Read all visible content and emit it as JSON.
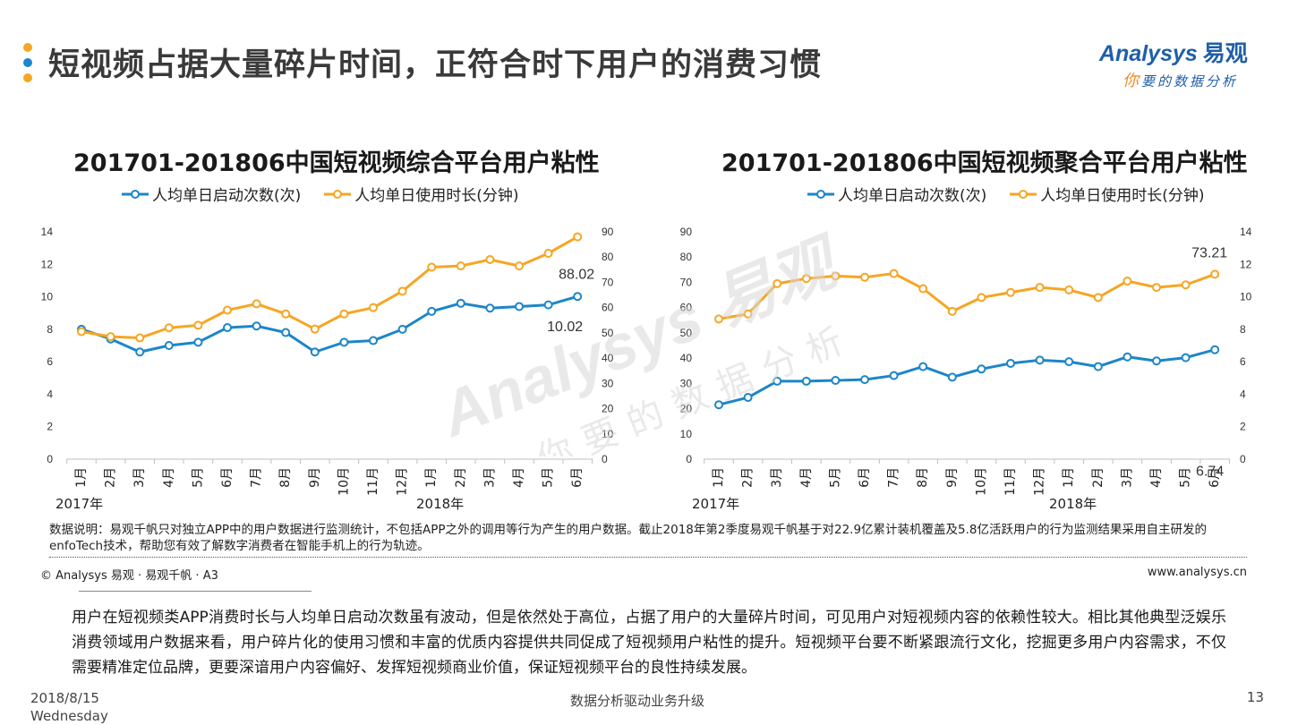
{
  "slide": {
    "title": "短视频占据大量碎片时间，正符合时下用户的消费习惯",
    "title_dot_colors": [
      "#f5a623",
      "#1c86c9",
      "#f5a623"
    ],
    "logo": {
      "brand_en": "Analysys",
      "brand_cn": "易观",
      "tagline_first": "你",
      "tagline_rest": "要的数据分析"
    },
    "watermark": {
      "brand": "Analysys 易观",
      "tagline": "你要的数据分析"
    },
    "note": "数据说明：易观千帆只对独立APP中的用户数据进行监测统计，不包括APP之外的调用等行为产生的用户数据。截止2018年第2季度易观千帆基于对22.9亿累计装机覆盖及5.8亿活跃用户的行为监测结果采用自主研发的enfoTech技术，帮助您有效了解数字消费者在智能手机上的行为轨迹。",
    "copyright": "© Analysys 易观 · 易观千帆 · A3",
    "website": "www.analysys.cn",
    "body_text": "用户在短视频类APP消费时长与人均单日启动次数虽有波动，但是依然处于高位，占据了用户的大量碎片时间，可见用户对短视频内容的依赖性较大。相比其他典型泛娱乐消费领域用户数据来看，用户碎片化的使用习惯和丰富的优质内容提供共同促成了短视频用户粘性的提升。短视频平台要不断紧跟流行文化，挖掘更多用户内容需求，不仅需要精准定位品牌，更要深谙用户内容偏好、发挥短视频商业价值，保证短视频平台的良性持续发展。",
    "footer": {
      "date": "2018/8/15",
      "weekday": "Wednesday",
      "slogan": "数据分析驱动业务升级",
      "page": "13"
    }
  },
  "chart_data": [
    {
      "type": "line",
      "title": "201701-201806中国短视频综合平台用户粘性",
      "categories": [
        "1月",
        "2月",
        "3月",
        "4月",
        "5月",
        "6月",
        "7月",
        "8月",
        "9月",
        "10月",
        "11月",
        "12月",
        "1月",
        "2月",
        "3月",
        "4月",
        "5月",
        "6月"
      ],
      "year_labels": [
        "2017年",
        "2018年"
      ],
      "legend_position": "top",
      "grid": false,
      "series": [
        {
          "name": "人均单日启动次数(次)",
          "axis": "left",
          "color": "#1c86c9",
          "values": [
            8.0,
            7.4,
            6.6,
            7.0,
            7.2,
            8.1,
            8.2,
            7.8,
            6.6,
            7.2,
            7.3,
            8.0,
            9.1,
            9.6,
            9.3,
            9.4,
            9.5,
            10.02
          ],
          "last_label": "10.02"
        },
        {
          "name": "人均单日使用时长(分钟)",
          "axis": "right",
          "color": "#f5a623",
          "values": [
            50.5,
            48.5,
            48.0,
            52.0,
            53.0,
            59.0,
            61.5,
            57.5,
            51.5,
            57.5,
            60.0,
            66.5,
            76.0,
            76.5,
            79.0,
            76.5,
            81.5,
            88.02
          ],
          "last_label": "88.02"
        }
      ],
      "y_left": {
        "min": 0,
        "max": 14,
        "ticks": [
          0,
          2,
          4,
          6,
          8,
          10,
          12,
          14
        ]
      },
      "y_right": {
        "min": 0,
        "max": 90,
        "ticks": [
          0,
          10,
          20,
          30,
          40,
          50,
          60,
          70,
          80,
          90
        ]
      }
    },
    {
      "type": "line",
      "title": "201701-201806中国短视频聚合平台用户粘性",
      "categories": [
        "1月",
        "2月",
        "3月",
        "4月",
        "5月",
        "6月",
        "7月",
        "8月",
        "9月",
        "10月",
        "11月",
        "12月",
        "1月",
        "2月",
        "3月",
        "4月",
        "5月",
        "6月"
      ],
      "year_labels": [
        "2017年",
        "2018年"
      ],
      "legend_position": "top",
      "grid": false,
      "series": [
        {
          "name": "人均单日启动次数(次)",
          "axis": "right",
          "color": "#1c86c9",
          "values": [
            3.35,
            3.8,
            4.8,
            4.8,
            4.85,
            4.9,
            5.15,
            5.7,
            5.05,
            5.55,
            5.9,
            6.1,
            6.0,
            5.7,
            6.3,
            6.05,
            6.25,
            6.74
          ],
          "last_label": "6.74"
        },
        {
          "name": "人均单日使用时长(分钟)",
          "axis": "left",
          "color": "#f5a623",
          "values": [
            55.5,
            57.5,
            69.5,
            71.5,
            72.5,
            72.0,
            73.5,
            67.5,
            58.5,
            64.0,
            66.0,
            68.0,
            67.0,
            64.0,
            70.5,
            68.0,
            69.0,
            73.21
          ],
          "last_label": "73.21"
        }
      ],
      "y_left": {
        "min": 0,
        "max": 90,
        "ticks": [
          0,
          10,
          20,
          30,
          40,
          50,
          60,
          70,
          80,
          90
        ]
      },
      "y_right": {
        "min": 0,
        "max": 14,
        "ticks": [
          0,
          2,
          4,
          6,
          8,
          10,
          12,
          14
        ]
      }
    }
  ]
}
